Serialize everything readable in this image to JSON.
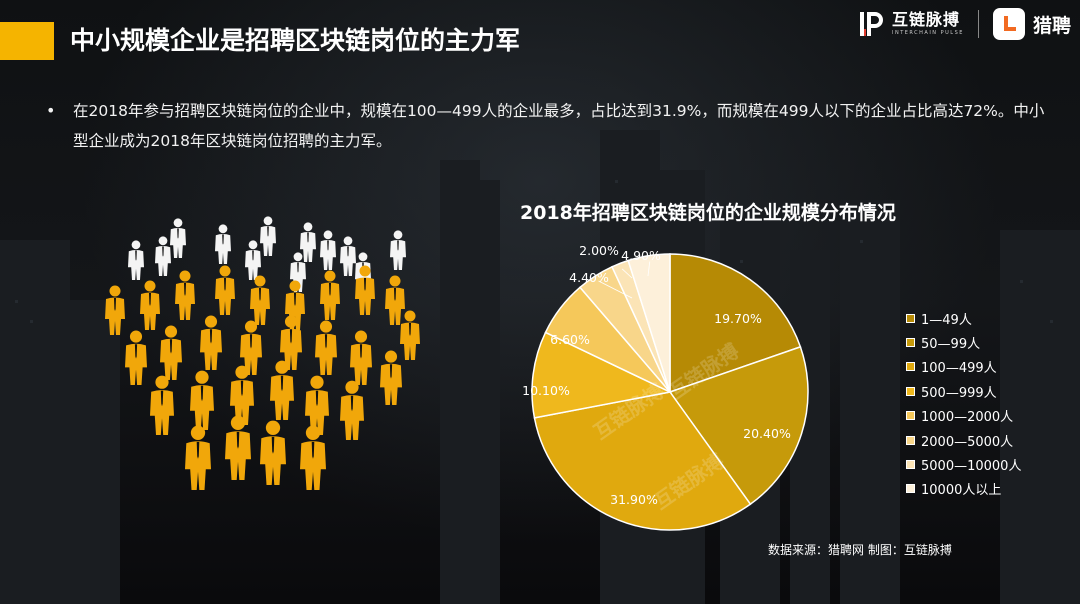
{
  "header": {
    "title": "中小规模企业是招聘区块链岗位的主力军",
    "brand_name": "互链脉搏",
    "brand_sub": "INTERCHAIN PULSE",
    "partner_name": "猎聘",
    "accent_color": "#f5b400"
  },
  "body": {
    "bullet": "在2018年参与招聘区块链岗位的企业中，规模在100—499人的企业最多，占比达到31.9%，而规模在499人以下的企业占比高达72%。中小型企业成为2018年区块链岗位招聘的主力军。"
  },
  "chart_data": {
    "type": "pie",
    "title": "2018年招聘区块链岗位的企业规模分布情况",
    "categories": [
      "1—49人",
      "50—99人",
      "100—499人",
      "500—999人",
      "1000—2000人",
      "2000—5000人",
      "5000—10000人",
      "10000人以上"
    ],
    "values": [
      19.7,
      20.4,
      31.9,
      10.1,
      6.6,
      4.4,
      2.0,
      4.9
    ],
    "labels": [
      "19.70%",
      "20.40%",
      "31.90%",
      "10.10%",
      "6.60%",
      "4.40%",
      "2.00%",
      "4.90%"
    ],
    "colors": [
      "#b68a05",
      "#c69a0a",
      "#e0a90e",
      "#efb81d",
      "#f5c85a",
      "#f8d68a",
      "#fbe4b6",
      "#fdf0da"
    ],
    "legend_position": "right"
  },
  "footer": {
    "source": "数据来源：猎聘网  制图：互链脉搏"
  }
}
